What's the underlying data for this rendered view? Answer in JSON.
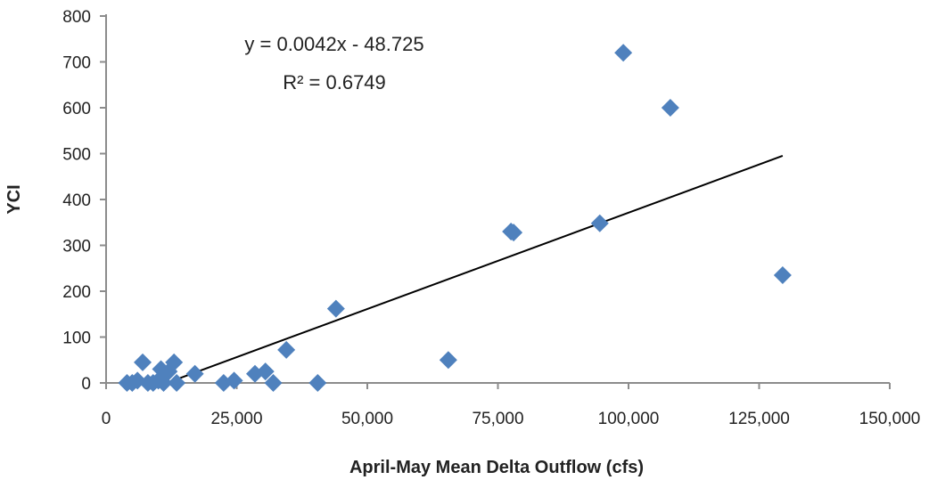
{
  "chart_data": {
    "type": "scatter",
    "xlabel": "April-May Mean Delta Outflow (cfs)",
    "ylabel": "YCI",
    "xlim": [
      0,
      150000
    ],
    "ylim": [
      0,
      800
    ],
    "x_ticks": [
      0,
      25000,
      50000,
      75000,
      100000,
      125000,
      150000
    ],
    "x_tick_labels": [
      "0",
      "25,000",
      "50,000",
      "75,000",
      "100,000",
      "125,000",
      "150,000"
    ],
    "y_ticks": [
      0,
      100,
      200,
      300,
      400,
      500,
      600,
      700,
      800
    ],
    "y_tick_labels": [
      "0",
      "100",
      "200",
      "300",
      "400",
      "500",
      "600",
      "700",
      "800"
    ],
    "grid": false,
    "legend": "none",
    "marker": "diamond",
    "marker_color": "#4F81BD",
    "trendline_color": "#000000",
    "series": [
      {
        "points": [
          {
            "x": 4000,
            "y": 0
          },
          {
            "x": 5000,
            "y": 0
          },
          {
            "x": 6000,
            "y": 5
          },
          {
            "x": 7000,
            "y": 45
          },
          {
            "x": 8000,
            "y": 0
          },
          {
            "x": 9000,
            "y": 0
          },
          {
            "x": 10000,
            "y": 5
          },
          {
            "x": 10500,
            "y": 30
          },
          {
            "x": 11000,
            "y": 0
          },
          {
            "x": 12000,
            "y": 25
          },
          {
            "x": 13000,
            "y": 45
          },
          {
            "x": 13500,
            "y": 0
          },
          {
            "x": 17000,
            "y": 20
          },
          {
            "x": 22500,
            "y": 0
          },
          {
            "x": 24500,
            "y": 5
          },
          {
            "x": 28500,
            "y": 20
          },
          {
            "x": 30500,
            "y": 25
          },
          {
            "x": 32000,
            "y": 0
          },
          {
            "x": 34500,
            "y": 72
          },
          {
            "x": 40500,
            "y": 0
          },
          {
            "x": 44000,
            "y": 162
          },
          {
            "x": 65500,
            "y": 50
          },
          {
            "x": 77500,
            "y": 330
          },
          {
            "x": 78000,
            "y": 328
          },
          {
            "x": 94500,
            "y": 348
          },
          {
            "x": 99000,
            "y": 720
          },
          {
            "x": 108000,
            "y": 600
          },
          {
            "x": 129500,
            "y": 235
          }
        ]
      }
    ],
    "trendline": {
      "type": "linear",
      "slope": 0.0042,
      "intercept": -48.725,
      "x_range": [
        11600,
        129500
      ],
      "equation_text": "y = 0.0042x - 48.725",
      "r2_text": "R² = 0.6749"
    }
  }
}
